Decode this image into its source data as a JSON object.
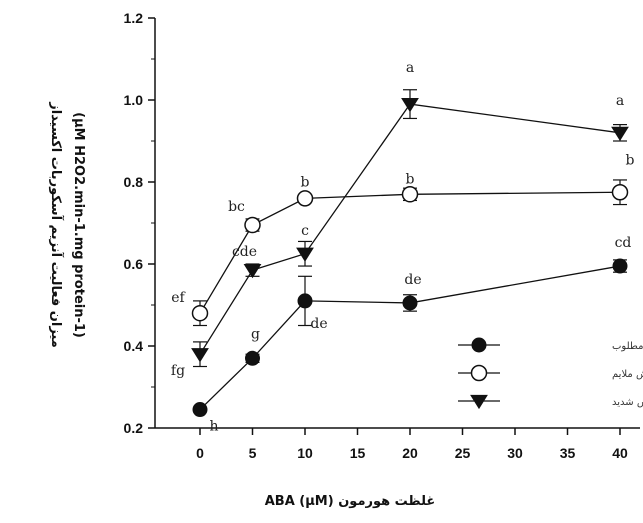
{
  "chart_data": {
    "type": "line",
    "xlabel": "غلظت هورمون ABA (µM)",
    "ylabel_line1": "میزان فعالیت آنزیم آسکوربات اکسیداز",
    "ylabel_line2": "(µM H2O2.min-1.mg protein-1)",
    "xlim": [
      -5,
      42
    ],
    "ylim": [
      0.2,
      1.2
    ],
    "xticks": [
      0,
      5,
      10,
      15,
      20,
      25,
      30,
      35,
      40
    ],
    "yticks": [
      "0.2",
      "0.4",
      "0.6",
      "0.8",
      "1.0",
      "1.2"
    ],
    "grid": false,
    "legend_position": "bottom-right",
    "series": [
      {
        "name": "آبیاری مطلوب",
        "marker": "filled-circle",
        "x": [
          0,
          5,
          10,
          20,
          40
        ],
        "y": [
          0.245,
          0.37,
          0.51,
          0.505,
          0.595
        ],
        "err": [
          0.0,
          0.01,
          0.06,
          0.02,
          0.015
        ],
        "letters": [
          "h",
          "g",
          "de",
          "de",
          "cd"
        ]
      },
      {
        "name": "تنش ملایم",
        "marker": "open-circle",
        "x": [
          0,
          5,
          10,
          20,
          40
        ],
        "y": [
          0.48,
          0.695,
          0.76,
          0.77,
          0.775
        ],
        "err": [
          0.03,
          0.015,
          0.0,
          0.015,
          0.03
        ],
        "letters": [
          "ef",
          "bc",
          "b",
          "b",
          "b"
        ]
      },
      {
        "name": "تنش شدید",
        "marker": "filled-triangle-down",
        "x": [
          0,
          5,
          10,
          20,
          40
        ],
        "y": [
          0.38,
          0.585,
          0.625,
          0.99,
          0.92
        ],
        "err": [
          0.03,
          0.015,
          0.03,
          0.035,
          0.02
        ],
        "letters": [
          "fg",
          "cde",
          "c",
          "a",
          "a"
        ]
      }
    ]
  }
}
